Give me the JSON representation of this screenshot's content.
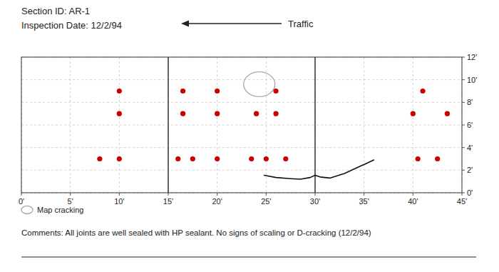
{
  "chart_data": {
    "type": "scatter",
    "title": "Section ID:  AR-1",
    "subtitle": "Inspection Date:  12/2/94",
    "annotations": [
      "Traffic",
      "Comments:  All joints are well sealed with HP sealant.  No signs of scaling or D-cracking (12/2/94)"
    ],
    "xlim": [
      0,
      45
    ],
    "ylim": [
      0,
      12
    ],
    "xticks": [
      {
        "value": 0,
        "label": "0'"
      },
      {
        "value": 5,
        "label": "5'"
      },
      {
        "value": 10,
        "label": "10'"
      },
      {
        "value": 15,
        "label": "15'"
      },
      {
        "value": 20,
        "label": "20'"
      },
      {
        "value": 25,
        "label": "25'"
      },
      {
        "value": 30,
        "label": "30'"
      },
      {
        "value": 35,
        "label": "35'"
      },
      {
        "value": 40,
        "label": "40'"
      },
      {
        "value": 45,
        "label": "45'"
      }
    ],
    "yticks": [
      {
        "value": 0,
        "label": "0'"
      },
      {
        "value": 2,
        "label": "2'"
      },
      {
        "value": 4,
        "label": "4'"
      },
      {
        "value": 6,
        "label": "6'"
      },
      {
        "value": 8,
        "label": "8'"
      },
      {
        "value": 10,
        "label": "10'"
      },
      {
        "value": 12,
        "label": "12'"
      }
    ],
    "grid": true,
    "series": [
      {
        "type": "scatter",
        "color": "#cc0000",
        "marker": "circle",
        "x": [
          8,
          10,
          16,
          17.5,
          20,
          23.5,
          25,
          27,
          40.5,
          42.5,
          10,
          16.5,
          20,
          24,
          26,
          40,
          43.5,
          10,
          16.5,
          20,
          26,
          41
        ],
        "values": [
          3,
          3,
          3,
          3,
          3,
          3,
          3,
          3,
          3,
          3,
          7,
          7,
          7,
          7,
          7,
          7,
          7,
          9,
          9,
          9,
          9,
          9
        ]
      },
      {
        "type": "line",
        "color": "#111111",
        "line_style": "solid",
        "x": [
          24.8,
          26.0,
          27.5,
          28.5,
          29.5,
          30.0
        ],
        "values": [
          1.55,
          1.35,
          1.25,
          1.2,
          1.35,
          1.55
        ]
      },
      {
        "type": "line",
        "color": "#111111",
        "line_style": "solid",
        "x": [
          30.0,
          30.5,
          31.5,
          33.0,
          35.0,
          36.0
        ],
        "values": [
          1.55,
          1.4,
          1.3,
          1.7,
          2.5,
          2.9
        ]
      },
      {
        "type": "vline",
        "color": "#333333",
        "x": [
          15,
          30
        ]
      },
      {
        "type": "ellipse",
        "name": "Map cracking",
        "color": "#aaaaaa",
        "x": [
          24.3
        ],
        "values": [
          9.6
        ],
        "width": [
          3.2
        ],
        "height": [
          2.2
        ]
      }
    ]
  }
}
